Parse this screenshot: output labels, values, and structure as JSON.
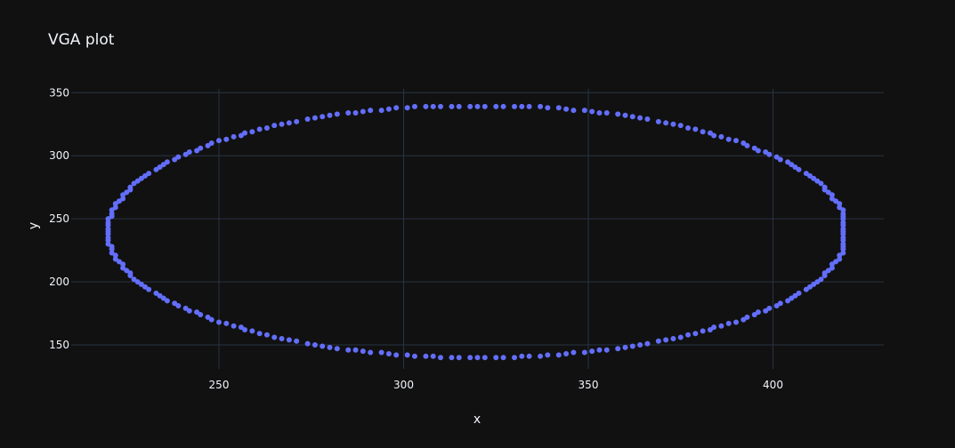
{
  "chart_data": {
    "type": "scatter",
    "title": "VGA plot",
    "xlabel": "x",
    "ylabel": "y",
    "xlim": [
      210,
      430
    ],
    "ylim": [
      131,
      353
    ],
    "xticks": [
      250,
      300,
      350,
      400
    ],
    "yticks": [
      150,
      200,
      250,
      300,
      350
    ],
    "grid": true,
    "marker_color": "#636efa",
    "background": "#111111",
    "grid_color": "#283442",
    "ellipse": {
      "center_x": 320,
      "center_y": 240,
      "radius_x": 100,
      "radius_y": 100,
      "clamp_x": [
        220,
        419
      ],
      "clamp_y": [
        140,
        339
      ],
      "point_count": 260
    }
  }
}
